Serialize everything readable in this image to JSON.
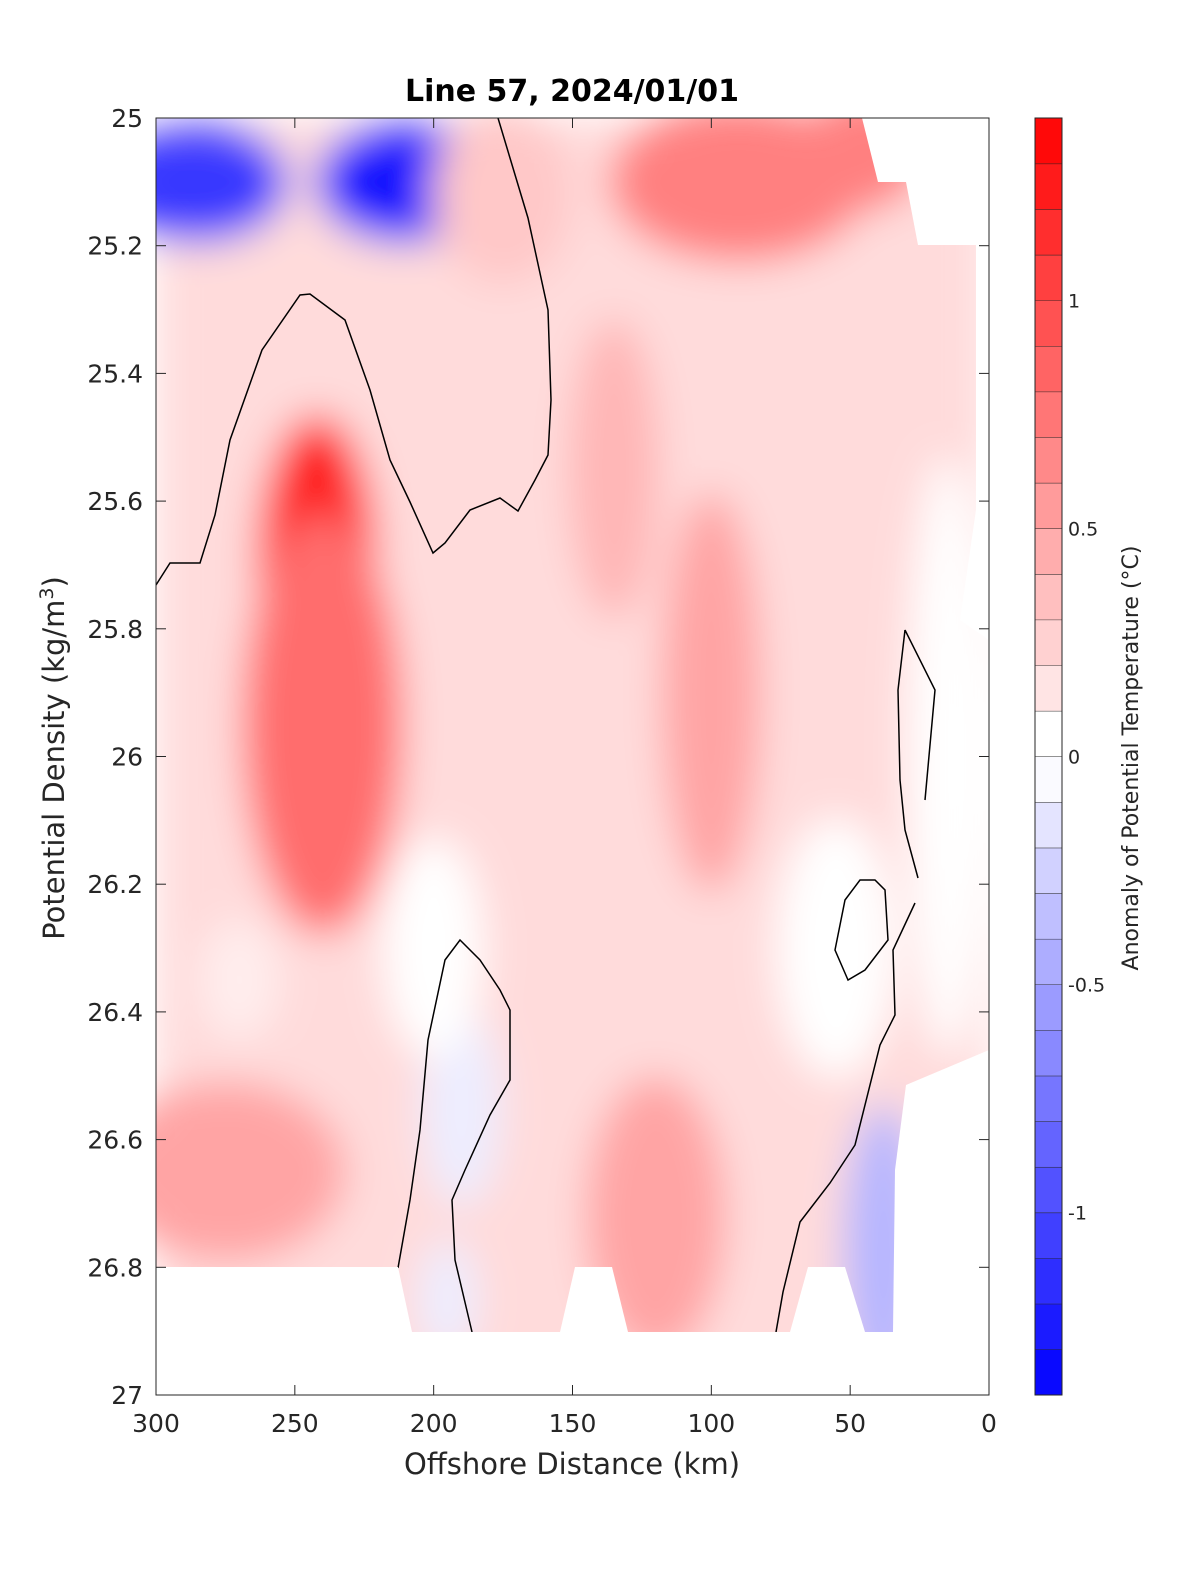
{
  "chart_data": {
    "type": "heatmap",
    "title": "Line 57, 2024/01/01",
    "xlabel": "Offshore Distance (km)",
    "ylabel": "Potential Density (kg/m",
    "ylabel_sup": "3",
    "ylabel_close": ")",
    "xlim": [
      300,
      0
    ],
    "ylim": [
      25,
      27
    ],
    "y_reversed": true,
    "x_ticks": [
      "300",
      "250",
      "200",
      "150",
      "100",
      "50",
      "0"
    ],
    "x_tick_values": [
      300,
      250,
      200,
      150,
      100,
      50,
      0
    ],
    "y_ticks": [
      "25",
      "25.2",
      "25.4",
      "25.6",
      "25.8",
      "26",
      "26.2",
      "26.4",
      "26.6",
      "26.8",
      "27"
    ],
    "y_tick_values": [
      25,
      25.2,
      25.4,
      25.6,
      25.8,
      26,
      26.2,
      26.4,
      26.6,
      26.8,
      27
    ],
    "colorbar": {
      "label": "Anomaly of Potential Temperature (°C)",
      "range": [
        -1.4,
        1.4
      ],
      "levels_step": 0.1,
      "ticks": [
        "-1",
        "-0.5",
        "0",
        "0.5",
        "1"
      ],
      "tick_values": [
        -1,
        -0.5,
        0,
        0.5,
        1
      ],
      "colormap": "blue-white-red",
      "color_min": "#0000ff",
      "color_mid": "#ffffff",
      "color_max": "#ff0000"
    },
    "zero_contour_color": "#000000",
    "features": [
      {
        "x": 285,
        "y": 25.1,
        "value": -1.1
      },
      {
        "x": 210,
        "y": 25.1,
        "value": -1.3
      },
      {
        "x": 242,
        "y": 25.7,
        "value": 1.2
      },
      {
        "x": 240,
        "y": 25.95,
        "value": 0.8
      },
      {
        "x": 175,
        "y": 25.12,
        "value": 0.3
      },
      {
        "x": 90,
        "y": 25.1,
        "value": 0.7
      },
      {
        "x": 45,
        "y": 25.05,
        "value": 0.7
      },
      {
        "x": 100,
        "y": 25.9,
        "value": 0.5
      },
      {
        "x": 135,
        "y": 25.55,
        "value": 0.4
      },
      {
        "x": 275,
        "y": 26.65,
        "value": 0.5
      },
      {
        "x": 120,
        "y": 26.72,
        "value": 0.5
      },
      {
        "x": 270,
        "y": 26.35,
        "value": 0.1
      },
      {
        "x": 190,
        "y": 26.55,
        "value": -0.1
      },
      {
        "x": 195,
        "y": 26.85,
        "value": -0.1
      },
      {
        "x": 38,
        "y": 26.78,
        "value": -0.4
      },
      {
        "x": 55,
        "y": 26.3,
        "value": 0.0
      },
      {
        "x": 200,
        "y": 26.3,
        "value": 0.0
      },
      {
        "x": 15,
        "y": 26.0,
        "value": 0.0
      }
    ]
  }
}
